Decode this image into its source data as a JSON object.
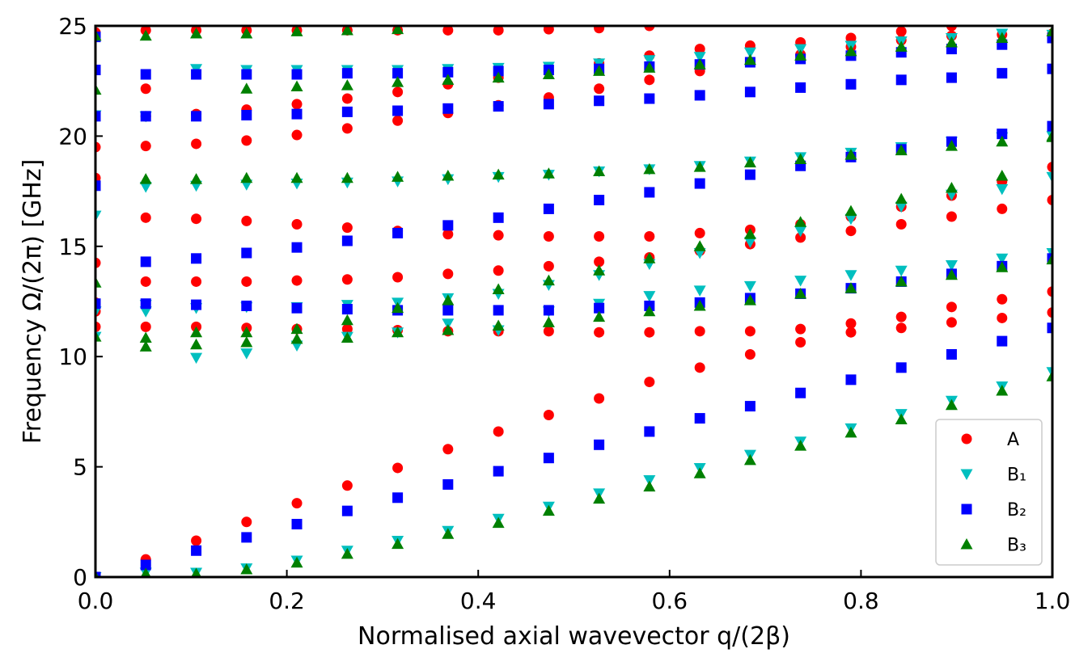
{
  "chart_data": {
    "type": "scatter",
    "xlabel": "Normalised axial wavevector q/(2β)",
    "ylabel": "Frequency Ω/(2π) [GHz]",
    "xlim": [
      0,
      1
    ],
    "ylim": [
      0,
      25
    ],
    "xticks": [
      "0.0",
      "0.2",
      "0.4",
      "0.6",
      "0.8",
      "1.0"
    ],
    "yticks": [
      "0",
      "5",
      "10",
      "15",
      "20",
      "25"
    ],
    "grid": false,
    "legend_position": "bottom-right",
    "x": [
      0.0,
      0.0526,
      0.1053,
      0.1579,
      0.2105,
      0.2632,
      0.3158,
      0.3684,
      0.4211,
      0.4737,
      0.5263,
      0.5789,
      0.6316,
      0.6842,
      0.7368,
      0.7895,
      0.8421,
      0.8947,
      0.9474,
      1.0
    ],
    "series": [
      {
        "name": "A",
        "color": "#ff0000",
        "marker": "circle",
        "bands": [
          [
            0.0,
            0.8,
            1.65,
            2.5,
            3.35,
            4.15,
            4.95,
            5.8,
            6.6,
            7.35,
            8.1,
            8.85,
            9.5,
            10.1,
            10.65,
            11.1,
            11.3,
            11.55,
            11.75,
            12.0
          ],
          [
            11.35,
            11.35,
            11.35,
            11.3,
            11.25,
            11.25,
            11.2,
            11.15,
            11.15,
            11.15,
            11.1,
            11.1,
            11.15,
            11.15,
            11.25,
            11.5,
            11.8,
            12.25,
            12.6,
            12.95
          ],
          [
            12.05,
            null,
            null,
            null,
            null,
            null,
            null,
            null,
            null,
            null,
            null,
            null,
            null,
            null,
            null,
            null,
            null,
            null,
            null,
            null
          ],
          [
            12.45,
            13.4,
            13.4,
            13.4,
            13.45,
            13.5,
            13.6,
            13.75,
            13.9,
            14.1,
            14.3,
            14.5,
            14.8,
            15.1,
            15.4,
            15.7,
            16.0,
            16.35,
            16.7,
            17.1
          ],
          [
            14.25,
            16.3,
            16.25,
            16.15,
            16.0,
            15.85,
            15.7,
            15.55,
            15.5,
            15.45,
            15.45,
            15.45,
            15.6,
            15.75,
            16.0,
            16.35,
            16.8,
            17.3,
            17.95,
            18.6
          ],
          [
            18.1,
            19.55,
            19.65,
            19.8,
            20.05,
            20.35,
            20.7,
            21.05,
            21.4,
            21.75,
            22.15,
            22.55,
            22.95,
            23.35,
            23.7,
            24.05,
            24.35,
            24.55,
            24.6,
            24.65
          ],
          [
            19.5,
            20.9,
            21.0,
            21.2,
            21.45,
            21.7,
            22.0,
            22.35,
            22.65,
            22.95,
            23.3,
            23.65,
            23.95,
            24.1,
            24.25,
            24.45,
            24.75,
            25.0,
            null,
            null
          ],
          [
            20.9,
            22.15,
            null,
            null,
            null,
            null,
            null,
            null,
            null,
            null,
            null,
            null,
            null,
            null,
            null,
            null,
            null,
            null,
            null,
            null
          ],
          [
            24.7,
            24.8,
            24.8,
            24.8,
            24.8,
            24.8,
            24.8,
            24.8,
            24.8,
            24.85,
            24.9,
            25.0,
            null,
            null,
            null,
            null,
            null,
            null,
            null,
            null
          ]
        ]
      },
      {
        "name": "B₁",
        "color": "#00bfbf",
        "marker": "triangle-down",
        "bands": [
          [
            0.0,
            0.2,
            0.2,
            0.4,
            0.75,
            1.2,
            1.65,
            2.1,
            2.65,
            3.2,
            3.8,
            4.4,
            4.95,
            5.55,
            6.15,
            6.75,
            7.4,
            8.0,
            8.65,
            9.3
          ],
          [
            10.9,
            12.05,
            9.95,
            10.15,
            10.5,
            10.9,
            11.1,
            11.5,
            11.2,
            12.05,
            12.4,
            12.75,
            13.0,
            13.2,
            13.45,
            13.7,
            13.9,
            14.15,
            14.45,
            14.7
          ],
          [
            12.05,
            12.35,
            12.2,
            12.25,
            12.25,
            12.35,
            12.45,
            12.65,
            12.85,
            13.25,
            13.7,
            14.2,
            14.7,
            15.2,
            15.7,
            16.25,
            16.8,
            17.35,
            17.6,
            18.15
          ],
          [
            16.4,
            17.7,
            17.75,
            17.8,
            17.85,
            17.9,
            17.95,
            18.05,
            18.15,
            18.25,
            18.4,
            18.5,
            18.65,
            18.85,
            19.05,
            19.25,
            19.5,
            19.75,
            19.95,
            20.0
          ],
          [
            20.95,
            20.9,
            23.05,
            23.0,
            23.0,
            23.0,
            23.0,
            23.05,
            23.1,
            23.15,
            23.3,
            23.45,
            23.6,
            23.8,
            23.95,
            24.1,
            24.3,
            24.45,
            24.65,
            24.6
          ]
        ]
      },
      {
        "name": "B₂",
        "color": "#0000ff",
        "marker": "square",
        "bands": [
          [
            0.0,
            0.55,
            1.2,
            1.8,
            2.4,
            3.0,
            3.6,
            4.2,
            4.8,
            5.4,
            6.0,
            6.6,
            7.2,
            7.75,
            8.35,
            8.95,
            9.5,
            10.1,
            10.7,
            11.3
          ],
          [
            12.4,
            12.4,
            12.35,
            12.3,
            12.2,
            12.15,
            12.1,
            12.1,
            12.1,
            12.1,
            12.2,
            12.3,
            12.45,
            12.65,
            12.85,
            13.1,
            13.4,
            13.75,
            14.1,
            14.45
          ],
          [
            17.75,
            14.3,
            14.45,
            14.7,
            14.95,
            15.25,
            15.6,
            15.95,
            16.3,
            16.7,
            17.1,
            17.45,
            17.85,
            18.25,
            18.65,
            19.05,
            19.4,
            19.75,
            20.1,
            20.45
          ],
          [
            20.9,
            20.9,
            20.9,
            20.95,
            21.0,
            21.1,
            21.15,
            21.25,
            21.35,
            21.45,
            21.6,
            21.7,
            21.85,
            22.0,
            22.2,
            22.35,
            22.55,
            22.65,
            22.85,
            23.05
          ],
          [
            23.0,
            22.8,
            22.8,
            22.8,
            22.8,
            22.85,
            22.85,
            22.9,
            22.95,
            23.0,
            23.05,
            23.15,
            23.25,
            23.35,
            23.5,
            23.65,
            23.8,
            23.95,
            24.15,
            24.45
          ],
          [
            24.5,
            null,
            null,
            null,
            null,
            null,
            null,
            null,
            null,
            null,
            null,
            null,
            null,
            null,
            null,
            null,
            null,
            null,
            null,
            null
          ]
        ]
      },
      {
        "name": "B₃",
        "color": "#008000",
        "marker": "triangle-up",
        "bands": [
          [
            0.0,
            0.15,
            0.15,
            0.35,
            0.65,
            1.05,
            1.5,
            1.95,
            2.45,
            3.0,
            3.55,
            4.1,
            4.7,
            5.3,
            5.95,
            6.55,
            7.15,
            7.8,
            8.45,
            9.1
          ],
          [
            10.9,
            10.45,
            10.55,
            10.65,
            10.8,
            10.85,
            11.1,
            11.2,
            11.4,
            11.55,
            11.8,
            12.05,
            12.3,
            12.55,
            12.85,
            13.1,
            13.4,
            13.7,
            14.05,
            14.4
          ],
          [
            13.35,
            10.85,
            11.1,
            11.1,
            11.25,
            11.65,
            12.2,
            12.55,
            13.05,
            13.45,
            13.9,
            14.45,
            15.0,
            15.55,
            16.1,
            16.6,
            17.15,
            17.65,
            18.2,
            19.95
          ],
          [
            22.1,
            18.05,
            18.05,
            18.1,
            18.1,
            18.1,
            18.15,
            18.2,
            18.25,
            18.3,
            18.4,
            18.5,
            18.6,
            18.8,
            18.95,
            19.15,
            19.35,
            19.55,
            19.75,
            20.0
          ],
          [
            24.55,
            24.55,
            24.65,
            22.15,
            22.25,
            22.3,
            22.45,
            22.55,
            22.65,
            22.8,
            22.95,
            23.1,
            23.25,
            23.45,
            23.65,
            23.85,
            24.05,
            24.25,
            24.45,
            24.75
          ],
          [
            null,
            null,
            null,
            24.65,
            24.75,
            24.8,
            24.85,
            null,
            null,
            null,
            null,
            null,
            null,
            null,
            null,
            null,
            null,
            null,
            null,
            null
          ]
        ]
      }
    ]
  }
}
